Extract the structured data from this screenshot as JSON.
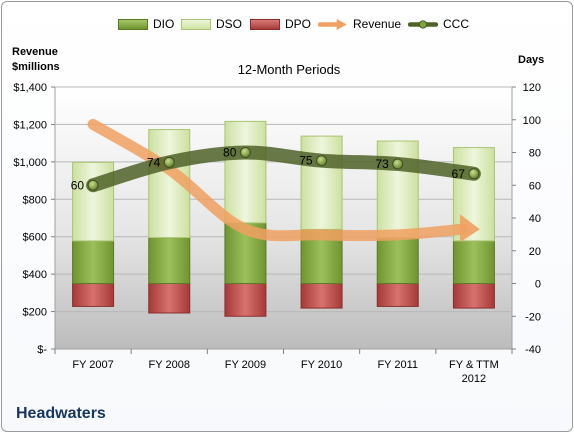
{
  "legend": [
    {
      "name": "DIO",
      "icon": "bar-swatch",
      "color": "#7ea33c"
    },
    {
      "name": "DSO",
      "icon": "bar-swatch",
      "color": "#d7e8b0"
    },
    {
      "name": "DPO",
      "icon": "bar-swatch",
      "color": "#b94a48"
    },
    {
      "name": "Revenue",
      "icon": "arrow-line",
      "color": "#f0a060"
    },
    {
      "name": "CCC",
      "icon": "line-marker",
      "color": "#4f6228"
    }
  ],
  "left_axis_title": [
    "Revenue",
    "$millions"
  ],
  "right_axis_title": "Days",
  "company": "Headwaters",
  "chart_data": {
    "type": "bar",
    "title": "12-Month Periods",
    "categories": [
      "FY 2007",
      "FY 2008",
      "FY 2009",
      "FY 2010",
      "FY 2011",
      "FY & TTM 2012"
    ],
    "x_tick_lines": [
      [
        "FY 2007"
      ],
      [
        "FY 2008"
      ],
      [
        "FY 2009"
      ],
      [
        "FY 2010"
      ],
      [
        "FY 2011"
      ],
      [
        "FY & TTM",
        "2012"
      ]
    ],
    "left_axis": {
      "min": 0,
      "max": 1400,
      "step": 200,
      "tick_labels": [
        "$-",
        "$200",
        "$400",
        "$600",
        "$800",
        "$1,000",
        "$1,200",
        "$1,400"
      ]
    },
    "right_axis": {
      "min": -40,
      "max": 120,
      "step": 20,
      "tick_labels": [
        "-40",
        "-20",
        "0",
        "20",
        "40",
        "60",
        "80",
        "100",
        "120"
      ]
    },
    "series": [
      {
        "name": "DPO",
        "axis": "right",
        "kind": "bar",
        "color": "#b94a48",
        "from": [
          -14,
          -18,
          -20,
          -15,
          -14,
          -15
        ],
        "to": [
          0,
          0,
          0,
          0,
          0,
          0
        ]
      },
      {
        "name": "DIO",
        "axis": "right",
        "kind": "bar",
        "color": "#7ea33c",
        "from": [
          0,
          0,
          0,
          0,
          0,
          0
        ],
        "to": [
          26,
          28,
          37,
          33,
          28,
          26
        ]
      },
      {
        "name": "DSO",
        "axis": "right",
        "kind": "bar",
        "color": "#d7e8b0",
        "from": [
          26,
          28,
          37,
          33,
          28,
          26
        ],
        "to": [
          74,
          94,
          99,
          90,
          87,
          83
        ]
      },
      {
        "name": "Revenue",
        "axis": "left",
        "kind": "line",
        "color": "#f0a060",
        "values": [
          1200,
          960,
          640,
          610,
          610,
          640
        ]
      },
      {
        "name": "CCC",
        "axis": "right",
        "kind": "line",
        "color": "#4f6228",
        "values": [
          60,
          74,
          80,
          75,
          73,
          67
        ],
        "data_labels": [
          "60",
          "74",
          "80",
          "75",
          "73",
          "67"
        ]
      }
    ],
    "grid": true,
    "legend_position": "top"
  }
}
